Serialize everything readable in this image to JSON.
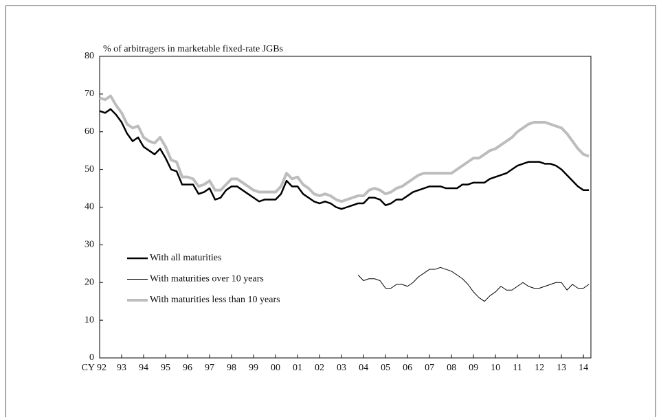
{
  "chart_data": {
    "type": "line",
    "y_label": "% of arbitragers in marketable fixed-rate JGBs",
    "x": [
      1992.5,
      1992.75,
      1993,
      1993.25,
      1993.5,
      1993.75,
      1994,
      1994.25,
      1994.5,
      1994.75,
      1995,
      1995.25,
      1995.5,
      1995.75,
      1996,
      1996.25,
      1996.5,
      1996.75,
      1997,
      1997.25,
      1997.5,
      1997.75,
      1998,
      1998.25,
      1998.5,
      1998.75,
      1999,
      1999.25,
      1999.5,
      1999.75,
      2000,
      2000.25,
      2000.5,
      2000.75,
      2001,
      2001.25,
      2001.5,
      2001.75,
      2002,
      2002.25,
      2002.5,
      2002.75,
      2003,
      2003.25,
      2003.5,
      2003.75,
      2004,
      2004.25,
      2004.5,
      2004.75,
      2005,
      2005.25,
      2005.5,
      2005.75,
      2006,
      2006.25,
      2006.5,
      2006.75,
      2007,
      2007.25,
      2007.5,
      2007.75,
      2008,
      2008.25,
      2008.5,
      2008.75,
      2009,
      2009.25,
      2009.5,
      2009.75,
      2010,
      2010.25,
      2010.5,
      2010.75,
      2011,
      2011.25,
      2011.5,
      2011.75,
      2012,
      2012.25,
      2012.5,
      2012.75,
      2013,
      2013.25,
      2013.5,
      2013.75,
      2014,
      2014.25,
      2014.5,
      2014.75
    ],
    "series": [
      {
        "name": "With all maturities",
        "color": "#000000",
        "width": 2.5,
        "values": [
          65.5,
          65,
          66,
          64.5,
          62.5,
          59.5,
          57.5,
          58.5,
          56,
          55,
          54,
          55.5,
          53,
          50,
          49.5,
          46,
          46,
          46,
          43.5,
          44,
          45,
          42,
          42.5,
          44.5,
          45.5,
          45.5,
          44.5,
          43.5,
          42.5,
          41.5,
          42,
          42,
          42,
          43.5,
          47,
          45.5,
          45.5,
          43.5,
          42.5,
          41.5,
          41,
          41.5,
          41,
          40,
          39.5,
          40,
          40.5,
          41,
          41,
          42.5,
          42.5,
          42,
          40.5,
          41,
          42,
          42,
          43,
          44,
          44.5,
          45,
          45.5,
          45.5,
          45.5,
          45,
          45,
          45,
          46,
          46,
          46.5,
          46.5,
          46.5,
          47.5,
          48,
          48.5,
          49,
          50,
          51,
          51.5,
          52,
          52,
          52,
          51.5,
          51.5,
          51,
          50,
          48.5,
          47,
          45.5,
          44.5,
          44.5
        ]
      },
      {
        "name": "With maturities over 10 years",
        "color": "#000000",
        "width": 1,
        "values": [
          null,
          null,
          null,
          null,
          null,
          null,
          null,
          null,
          null,
          null,
          null,
          null,
          null,
          null,
          null,
          null,
          null,
          null,
          null,
          null,
          null,
          null,
          null,
          null,
          null,
          null,
          null,
          null,
          null,
          null,
          null,
          null,
          null,
          null,
          null,
          null,
          null,
          null,
          null,
          null,
          null,
          null,
          null,
          null,
          null,
          null,
          null,
          22,
          20.5,
          21,
          21,
          20.5,
          18.5,
          18.5,
          19.5,
          19.5,
          19,
          20,
          21.5,
          22.5,
          23.5,
          23.5,
          24,
          23.5,
          23,
          22,
          21,
          19.5,
          17.5,
          16,
          15,
          16.5,
          17.5,
          19,
          18,
          18,
          19,
          20,
          19,
          18.5,
          18.5,
          19,
          19.5,
          20,
          20,
          18,
          19.5,
          18.5,
          18.5,
          19.5
        ]
      },
      {
        "name": "With maturities less than 10 years",
        "color": "#bdbdbd",
        "width": 4,
        "values": [
          69,
          68.5,
          69.5,
          67,
          65,
          62,
          61,
          61.5,
          58.5,
          57.5,
          57,
          58.5,
          56,
          52.5,
          52,
          48,
          48,
          47.5,
          45.5,
          46,
          47,
          44.5,
          44.5,
          46,
          47.5,
          47.5,
          46.5,
          45.5,
          44.5,
          44,
          44,
          44,
          44,
          45.5,
          49,
          47.5,
          48,
          46,
          45,
          43.5,
          43,
          43.5,
          43,
          42,
          41.5,
          42,
          42.5,
          43,
          43,
          44.5,
          45,
          44.5,
          43.5,
          44,
          45,
          45.5,
          46.5,
          47.5,
          48.5,
          49,
          49,
          49,
          49,
          49,
          49,
          50,
          51,
          52,
          53,
          53,
          54,
          55,
          55.5,
          56.5,
          57.5,
          58.5,
          60,
          61,
          62,
          62.5,
          62.5,
          62.5,
          62,
          61.5,
          61,
          59.5,
          57.5,
          55.5,
          54,
          53.5
        ]
      }
    ],
    "xlim": [
      1992.5,
      2014.84
    ],
    "xticks": [
      {
        "value": 1992.5,
        "label": "CY 92"
      },
      {
        "value": 1993.5,
        "label": "93"
      },
      {
        "value": 1994.5,
        "label": "94"
      },
      {
        "value": 1995.5,
        "label": "95"
      },
      {
        "value": 1996.5,
        "label": "96"
      },
      {
        "value": 1997.5,
        "label": "97"
      },
      {
        "value": 1998.5,
        "label": "98"
      },
      {
        "value": 1999.5,
        "label": "99"
      },
      {
        "value": 2000.5,
        "label": "00"
      },
      {
        "value": 2001.5,
        "label": "01"
      },
      {
        "value": 2002.5,
        "label": "02"
      },
      {
        "value": 2003.5,
        "label": "03"
      },
      {
        "value": 2004.5,
        "label": "04"
      },
      {
        "value": 2005.5,
        "label": "05"
      },
      {
        "value": 2006.5,
        "label": "06"
      },
      {
        "value": 2007.5,
        "label": "07"
      },
      {
        "value": 2008.5,
        "label": "08"
      },
      {
        "value": 2009.5,
        "label": "09"
      },
      {
        "value": 2010.5,
        "label": "10"
      },
      {
        "value": 2011.5,
        "label": "11"
      },
      {
        "value": 2012.5,
        "label": "12"
      },
      {
        "value": 2013.5,
        "label": "13"
      },
      {
        "value": 2014.5,
        "label": "14"
      }
    ],
    "ylim": [
      0,
      80
    ],
    "yticks": [
      0,
      10,
      20,
      30,
      40,
      50,
      60,
      70,
      80
    ],
    "grid": false,
    "legend": "lower left"
  }
}
